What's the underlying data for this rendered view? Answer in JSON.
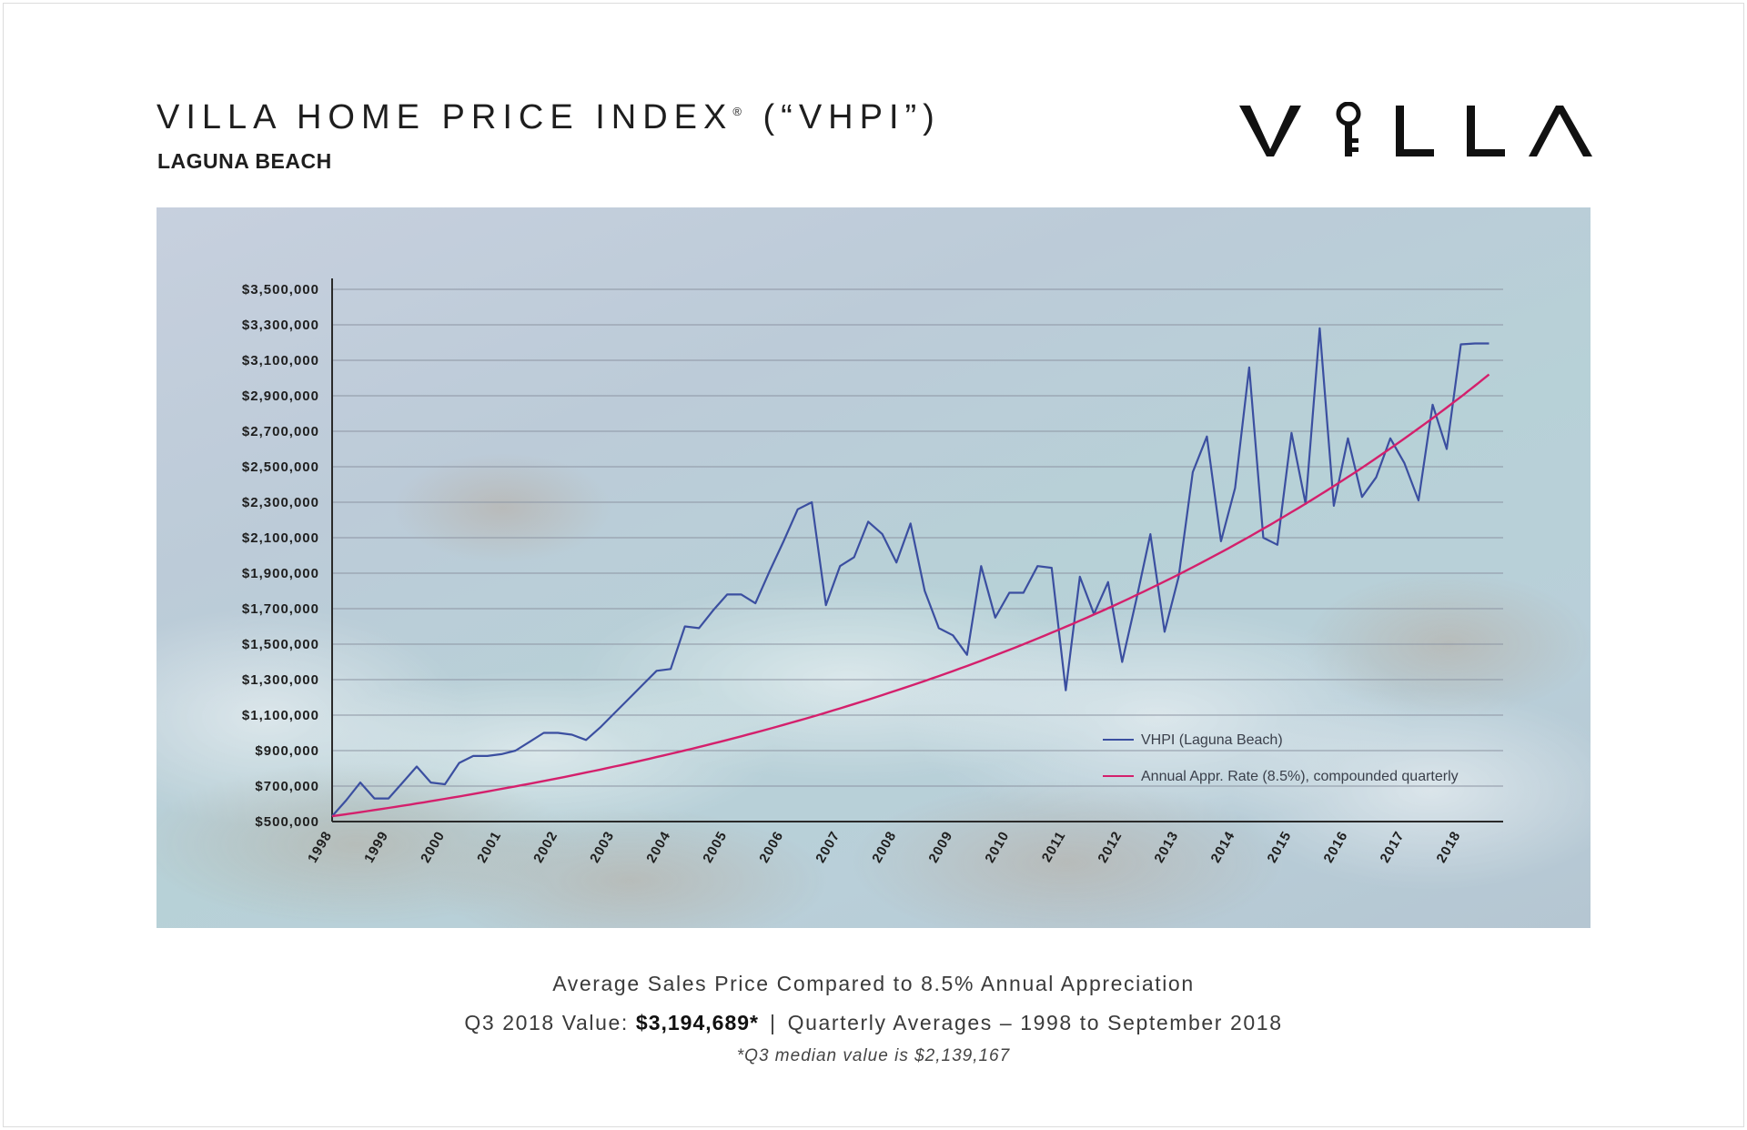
{
  "header": {
    "title": "VILLA HOME PRICE INDEX",
    "title_mark": "®",
    "title_suffix": "(“VHPI”)",
    "subtitle": "LAGUNA BEACH",
    "logo_text": "VILLA"
  },
  "caption": {
    "line1": "Average Sales Price Compared to 8.5% Annual Appreciation",
    "value_label": "Q3 2018 Value:",
    "value": "$3,194,689*",
    "separator": "|",
    "range": "Quarterly Averages – 1998 to September 2018",
    "note": "*Q3 median value is $2,139,167"
  },
  "colors": {
    "vhpi_line": "#3b4fa0",
    "appreciation_line": "#d4206c",
    "grid": "#8d95a3",
    "axis": "#2a2a2a"
  },
  "chart_data": {
    "type": "line",
    "xlabel": "",
    "ylabel": "",
    "ylim": [
      500000,
      3500000
    ],
    "xlim": [
      1998.0,
      2018.75
    ],
    "grid": true,
    "legend_position": "bottom-right",
    "yticks": [
      500000,
      700000,
      900000,
      1100000,
      1300000,
      1500000,
      1700000,
      1900000,
      2100000,
      2300000,
      2500000,
      2700000,
      2900000,
      3100000,
      3300000,
      3500000
    ],
    "ytick_labels": [
      "$500,000",
      "$700,000",
      "$900,000",
      "$1,100,000",
      "$1,300,000",
      "$1,500,000",
      "$1,700,000",
      "$1,900,000",
      "$2,100,000",
      "$2,300,000",
      "$2,500,000",
      "$2,700,000",
      "$2,900,000",
      "$3,100,000",
      "$3,300,000",
      "$3,500,000"
    ],
    "xticks": [
      1998,
      1999,
      2000,
      2001,
      2002,
      2003,
      2004,
      2005,
      2006,
      2007,
      2008,
      2009,
      2010,
      2011,
      2012,
      2013,
      2014,
      2015,
      2016,
      2017,
      2018
    ],
    "xtick_labels": [
      "1998",
      "1999",
      "2000",
      "2001",
      "2002",
      "2003",
      "2004",
      "2005",
      "2006",
      "2007",
      "2008",
      "2009",
      "2010",
      "2011",
      "2012",
      "2013",
      "2014",
      "2015",
      "2016",
      "2017",
      "2018"
    ],
    "series": [
      {
        "name": "VHPI (Laguna Beach)",
        "color": "#3b4fa0",
        "x": [
          1998.0,
          1998.25,
          1998.5,
          1998.75,
          1999.0,
          1999.25,
          1999.5,
          1999.75,
          2000.0,
          2000.25,
          2000.5,
          2000.75,
          2001.0,
          2001.25,
          2001.5,
          2001.75,
          2002.0,
          2002.25,
          2002.5,
          2002.75,
          2003.0,
          2003.25,
          2003.5,
          2003.75,
          2004.0,
          2004.25,
          2004.5,
          2004.75,
          2005.0,
          2005.25,
          2005.5,
          2005.75,
          2006.0,
          2006.25,
          2006.5,
          2006.75,
          2007.0,
          2007.25,
          2007.5,
          2007.75,
          2008.0,
          2008.25,
          2008.5,
          2008.75,
          2009.0,
          2009.25,
          2009.5,
          2009.75,
          2010.0,
          2010.25,
          2010.5,
          2010.75,
          2011.0,
          2011.25,
          2011.5,
          2011.75,
          2012.0,
          2012.25,
          2012.5,
          2012.75,
          2013.0,
          2013.25,
          2013.5,
          2013.75,
          2014.0,
          2014.25,
          2014.5,
          2014.75,
          2015.0,
          2015.25,
          2015.5,
          2015.75,
          2016.0,
          2016.25,
          2016.5,
          2016.75,
          2017.0,
          2017.25,
          2017.5,
          2017.75,
          2018.0,
          2018.25,
          2018.5
        ],
        "y": [
          530000,
          620000,
          720000,
          630000,
          630000,
          720000,
          810000,
          720000,
          710000,
          830000,
          870000,
          870000,
          880000,
          900000,
          950000,
          1000000,
          1000000,
          990000,
          960000,
          1030000,
          1110000,
          1190000,
          1270000,
          1350000,
          1360000,
          1600000,
          1590000,
          1690000,
          1780000,
          1780000,
          1730000,
          1910000,
          2080000,
          2260000,
          2300000,
          1720000,
          1940000,
          1990000,
          2190000,
          2120000,
          1960000,
          2180000,
          1800000,
          1590000,
          1550000,
          1440000,
          1940000,
          1650000,
          1790000,
          1790000,
          1940000,
          1930000,
          1240000,
          1880000,
          1670000,
          1850000,
          1400000,
          1750000,
          2120000,
          1570000,
          1880000,
          2470000,
          2670000,
          2080000,
          2380000,
          3060000,
          2100000,
          2060000,
          2690000,
          2290000,
          3280000,
          2280000,
          2660000,
          2330000,
          2440000,
          2660000,
          2520000,
          2310000,
          2850000,
          2600000,
          3190000,
          3195000,
          3195000
        ]
      },
      {
        "name": "Annual Appr. Rate (8.5%), compounded quarterly",
        "color": "#d4206c",
        "x": [
          1998.0,
          1999.0,
          2000.0,
          2001.0,
          2002.0,
          2003.0,
          2004.0,
          2005.0,
          2006.0,
          2007.0,
          2008.0,
          2009.0,
          2010.0,
          2011.0,
          2012.0,
          2013.0,
          2014.0,
          2015.0,
          2016.0,
          2017.0,
          2018.0,
          2018.5
        ],
        "y": [
          530000,
          577000,
          628000,
          684000,
          744000,
          810000,
          882000,
          960000,
          1045000,
          1138000,
          1239000,
          1348000,
          1468000,
          1598000,
          1739000,
          1893000,
          2061000,
          2244000,
          2442000,
          2659000,
          2894000,
          3020000
        ]
      }
    ]
  }
}
